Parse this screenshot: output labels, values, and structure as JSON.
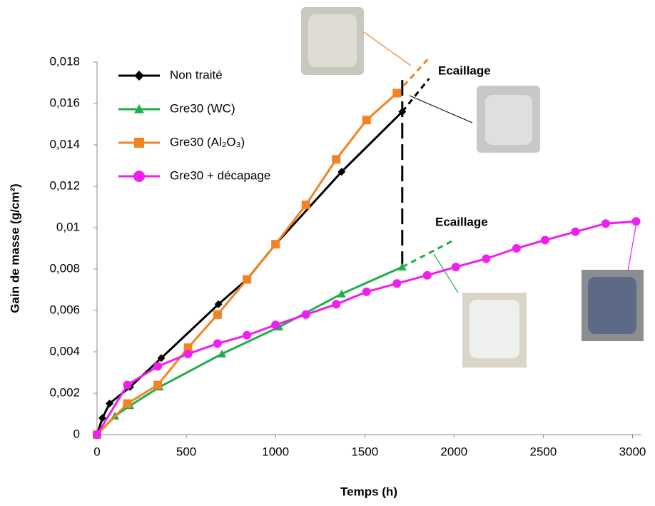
{
  "chart_data": {
    "type": "line",
    "xlabel": "Temps (h)",
    "ylabel": "Gain de masse (g/cm²)",
    "xlim": [
      0,
      3050
    ],
    "xticks": [
      0,
      500,
      1000,
      1500,
      2000,
      2500,
      3000
    ],
    "ylim": [
      0,
      0.018
    ],
    "yticks": [
      0,
      {
        "value": 0.002,
        "label": "0,002"
      },
      {
        "value": 0.004,
        "label": "0,004"
      },
      {
        "value": 0.006,
        "label": "0,006"
      },
      {
        "value": 0.008,
        "label": "0,008"
      },
      {
        "value": 0.01,
        "label": "0,01"
      },
      {
        "value": 0.012,
        "label": "0,012"
      },
      {
        "value": 0.014,
        "label": "0,014"
      },
      {
        "value": 0.016,
        "label": "0,016"
      },
      {
        "value": 0.018,
        "label": "0,018"
      }
    ],
    "legend": "top-left",
    "annotations": [
      "Ecaillage",
      "Ecaillage"
    ],
    "series": [
      {
        "name": "Non traité",
        "color": "#000000",
        "marker": "diamond",
        "x": [
          0,
          30,
          70,
          185,
          360,
          680,
          840,
          1000,
          1370,
          1710
        ],
        "values": [
          0,
          0.0008,
          0.0015,
          0.0023,
          0.0037,
          0.0063,
          0.0075,
          0.0092,
          0.0127,
          0.0156
        ],
        "extension": {
          "x": [
            1710,
            1860
          ],
          "values": [
            0.0156,
            0.0172
          ]
        }
      },
      {
        "name": "Gre30 (WC)",
        "color": "#1fae4b",
        "marker": "triangle",
        "x": [
          0,
          100,
          185,
          350,
          700,
          1020,
          1370,
          1710
        ],
        "values": [
          0,
          0.0009,
          0.0014,
          0.0023,
          0.0039,
          0.0052,
          0.0068,
          0.0081
        ],
        "extension": {
          "x": [
            1710,
            2000
          ],
          "values": [
            0.0081,
            0.0094
          ]
        }
      },
      {
        "name": "Gre30 (Al₂O₃)",
        "color": "#f28322",
        "marker": "square",
        "x": [
          0,
          170,
          340,
          510,
          675,
          840,
          1000,
          1170,
          1340,
          1510,
          1680
        ],
        "values": [
          0,
          0.0015,
          0.0024,
          0.0042,
          0.0058,
          0.0075,
          0.0092,
          0.0111,
          0.0133,
          0.0152,
          0.0165
        ],
        "extension": {
          "x": [
            1680,
            1860
          ],
          "values": [
            0.0165,
            0.0182
          ]
        }
      },
      {
        "name": "Gre30 + décapage",
        "color": "#f01ef0",
        "marker": "circle",
        "x": [
          0,
          170,
          340,
          510,
          675,
          840,
          1000,
          1170,
          1340,
          1510,
          1680,
          1850,
          2010,
          2180,
          2350,
          2510,
          2680,
          2850,
          3020
        ],
        "values": [
          0,
          0.0024,
          0.0033,
          0.0039,
          0.0044,
          0.0048,
          0.0053,
          0.0058,
          0.0063,
          0.0069,
          0.0073,
          0.0077,
          0.0081,
          0.0085,
          0.009,
          0.0094,
          0.0098,
          0.0102,
          0.0103
        ]
      }
    ],
    "drop_line": {
      "x": 1710,
      "values": [
        0.0081,
        0.0173
      ]
    }
  }
}
